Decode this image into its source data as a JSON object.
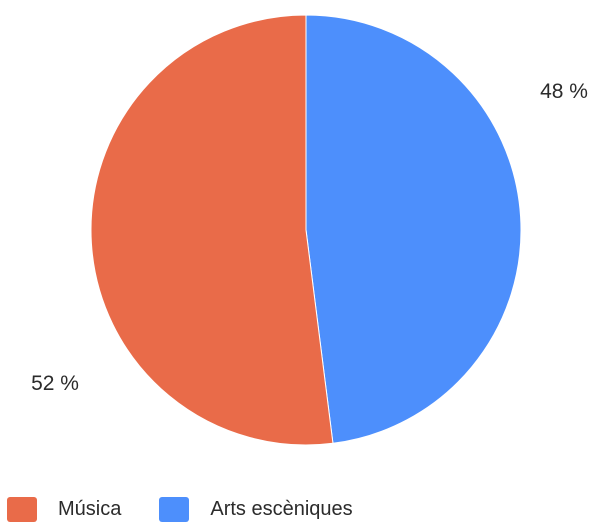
{
  "chart_data": {
    "type": "pie",
    "categories": [
      "Música",
      "Arts escèniques"
    ],
    "values": [
      52,
      48
    ],
    "value_labels": [
      "52 %",
      "48 %"
    ],
    "colors": [
      "#e96b49",
      "#4d8ffc"
    ],
    "legend_position": "bottom-left",
    "start_angle": "top",
    "direction": "counterclockwise"
  }
}
